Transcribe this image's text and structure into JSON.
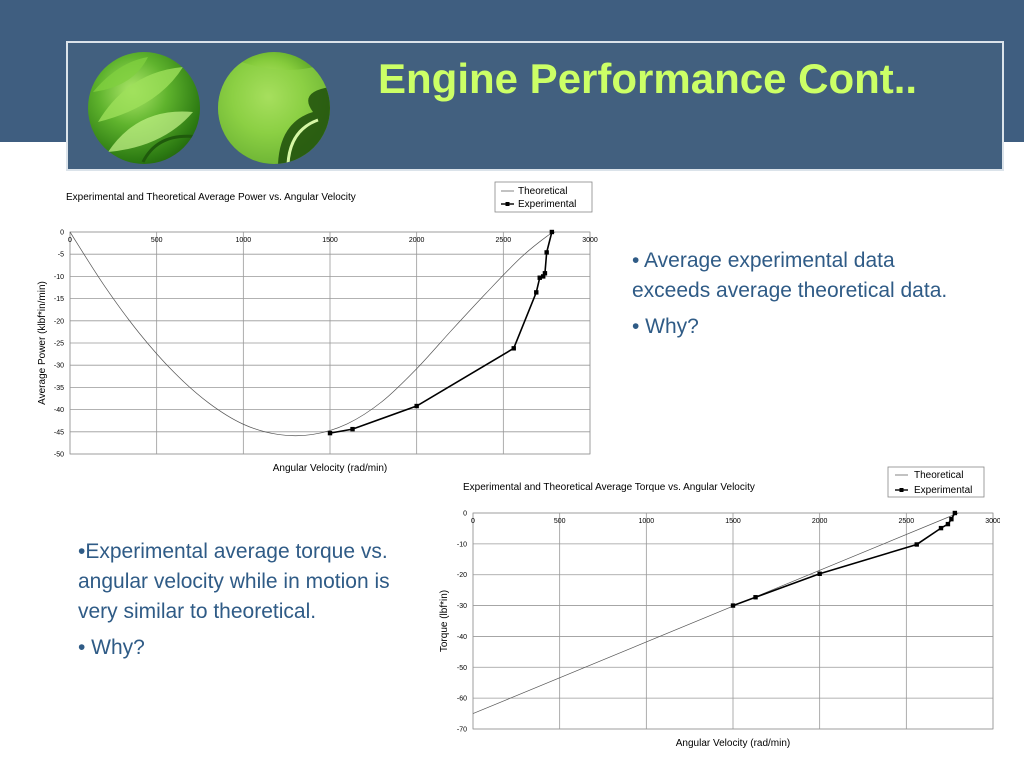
{
  "slide": {
    "title": "Engine Performance Cont..",
    "bullets_top": [
      "• Average experimental data exceeds average theoretical data.",
      "• Why?"
    ],
    "bullets_bottom": [
      "•Experimental average torque vs. angular velocity while in motion is very similar to theoretical.",
      "• Why?"
    ],
    "colors": {
      "header_band": "#3f5e80",
      "title": "#ccff66",
      "bullet_text": "#2f5b86"
    },
    "icons": [
      "leaf-photo-icon",
      "leaf-photo-icon"
    ]
  },
  "chart_data": [
    {
      "type": "line",
      "title": "Experimental and Theoretical Average Power vs. Angular Velocity",
      "xlabel": "Angular Velocity (rad/min)",
      "ylabel": "Average Power (klbf*in/min)",
      "xlim": [
        0,
        3000
      ],
      "ylim": [
        -50,
        0
      ],
      "xticks": [
        "0",
        "500",
        "1000",
        "1500",
        "2000",
        "2500",
        "3000"
      ],
      "yticks": [
        "0",
        "-5",
        "-10",
        "-15",
        "-20",
        "-25",
        "-30",
        "-35",
        "-40",
        "-45",
        "-50"
      ],
      "grid": true,
      "legend": "top-right",
      "series": [
        {
          "name": "Theoretical",
          "marker": "none",
          "x": [
            0,
            200,
            400,
            600,
            800,
            1000,
            1200,
            1400,
            1600,
            1800,
            2000,
            2200,
            2400,
            2600,
            2750,
            2800
          ],
          "y": [
            0,
            -12.2,
            -22.8,
            -31.6,
            -38.5,
            -43.3,
            -45.6,
            -45.6,
            -43.2,
            -38.2,
            -30.8,
            -22.2,
            -13.8,
            -5.8,
            -1.0,
            0
          ]
        },
        {
          "name": "Experimental",
          "marker": "square",
          "x": [
            1500,
            1630,
            2000,
            2560,
            2690,
            2710,
            2730,
            2740,
            2750,
            2780
          ],
          "y": [
            -45.3,
            -44.4,
            -39.2,
            -26.2,
            -13.6,
            -10.3,
            -10.0,
            -9.3,
            -4.6,
            0
          ]
        }
      ]
    },
    {
      "type": "line",
      "title": "Experimental and Theoretical Average Torque vs. Angular Velocity",
      "xlabel": "Angular Velocity (rad/min)",
      "ylabel": "Torque (lbf*in)",
      "xlim": [
        0,
        3000
      ],
      "ylim": [
        -70,
        0
      ],
      "xticks": [
        "0",
        "500",
        "1000",
        "1500",
        "2000",
        "2500",
        "3000"
      ],
      "yticks": [
        "0",
        "-10",
        "-20",
        "-30",
        "-40",
        "-50",
        "-60",
        "-70"
      ],
      "grid": true,
      "legend": "top-right",
      "series": [
        {
          "name": "Theoretical",
          "marker": "none",
          "x": [
            0,
            2800
          ],
          "y": [
            -65,
            0
          ]
        },
        {
          "name": "Experimental",
          "marker": "square",
          "x": [
            1500,
            1630,
            2000,
            2560,
            2700,
            2740,
            2760,
            2780
          ],
          "y": [
            -30,
            -27.3,
            -19.7,
            -10.2,
            -4.9,
            -3.6,
            -2.0,
            0
          ]
        }
      ]
    }
  ]
}
